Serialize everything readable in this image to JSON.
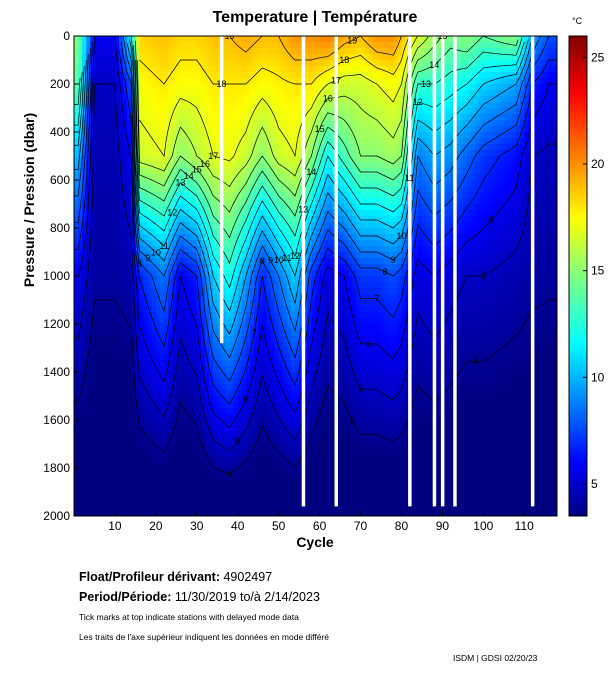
{
  "chart_data": {
    "type": "heatmap",
    "title": "Temperature | Température",
    "xlabel": "Cycle",
    "ylabel": "Pressure / Pression (dbar)",
    "xlim": [
      0,
      118
    ],
    "ylim": [
      2000,
      0
    ],
    "x_ticks": [
      10,
      20,
      30,
      40,
      50,
      60,
      70,
      80,
      90,
      100,
      110
    ],
    "y_ticks": [
      0,
      200,
      400,
      600,
      800,
      1000,
      1200,
      1400,
      1600,
      1800,
      2000
    ],
    "colorbar": {
      "unit": "°C",
      "range": [
        3.5,
        26
      ],
      "ticks": [
        5,
        10,
        15,
        20,
        25
      ],
      "colormap": "jet"
    },
    "contour_labels": [
      "17",
      "18",
      "19",
      "16",
      "15",
      "14",
      "13",
      "12",
      "11",
      "10",
      "9",
      "8",
      "7",
      "6",
      "5",
      "4"
    ],
    "gap_cycles": [
      36,
      56,
      64,
      82,
      88,
      90,
      93,
      112
    ],
    "profiles": [
      {
        "cycle": 1,
        "t_surface": 15.0,
        "t_200": 14.0,
        "t_500": 10.5,
        "t_1000": 6.0
      },
      {
        "cycle": 5,
        "t_surface": 6.0,
        "t_200": 5.0,
        "t_500": 4.6,
        "t_1000": 4.2
      },
      {
        "cycle": 10,
        "t_surface": 6.0,
        "t_200": 5.0,
        "t_500": 4.6,
        "t_1000": 4.2
      },
      {
        "cycle": 14,
        "t_surface": 12.0,
        "t_200": 8.0,
        "t_500": 6.0,
        "t_1000": 4.5
      },
      {
        "cycle": 16,
        "t_surface": 18.5,
        "t_200": 17.5,
        "t_500": 16.5,
        "t_1000": 7.0
      },
      {
        "cycle": 22,
        "t_surface": 19.0,
        "t_200": 18.0,
        "t_500": 17.0,
        "t_1000": 9.0
      },
      {
        "cycle": 26,
        "t_surface": 18.5,
        "t_200": 17.5,
        "t_500": 15.0,
        "t_1000": 6.0
      },
      {
        "cycle": 30,
        "t_surface": 18.5,
        "t_200": 17.5,
        "t_500": 16.0,
        "t_1000": 7.0
      },
      {
        "cycle": 34,
        "t_surface": 19.0,
        "t_200": 18.0,
        "t_500": 17.0,
        "t_1000": 11.0
      },
      {
        "cycle": 38,
        "t_surface": 19.0,
        "t_200": 18.0,
        "t_500": 17.2,
        "t_1000": 12.5
      },
      {
        "cycle": 42,
        "t_surface": 19.5,
        "t_200": 18.0,
        "t_500": 16.5,
        "t_1000": 10.0
      },
      {
        "cycle": 46,
        "t_surface": 19.0,
        "t_200": 17.5,
        "t_500": 15.0,
        "t_1000": 7.0
      },
      {
        "cycle": 50,
        "t_surface": 19.0,
        "t_200": 17.8,
        "t_500": 16.5,
        "t_1000": 9.0
      },
      {
        "cycle": 54,
        "t_surface": 20.0,
        "t_200": 18.0,
        "t_500": 17.0,
        "t_1000": 11.0
      },
      {
        "cycle": 58,
        "t_surface": 20.0,
        "t_200": 18.0,
        "t_500": 15.0,
        "t_1000": 7.5
      },
      {
        "cycle": 62,
        "t_surface": 20.5,
        "t_200": 17.0,
        "t_500": 12.0,
        "t_1000": 5.5
      },
      {
        "cycle": 66,
        "t_surface": 19.5,
        "t_200": 16.5,
        "t_500": 13.5,
        "t_1000": 6.0
      },
      {
        "cycle": 70,
        "t_surface": 19.0,
        "t_200": 16.5,
        "t_500": 15.0,
        "t_1000": 7.5
      },
      {
        "cycle": 74,
        "t_surface": 20.0,
        "t_200": 17.0,
        "t_500": 15.0,
        "t_1000": 7.5
      },
      {
        "cycle": 78,
        "t_surface": 20.0,
        "t_200": 17.5,
        "t_500": 15.5,
        "t_1000": 8.0
      },
      {
        "cycle": 80,
        "t_surface": 19.0,
        "t_200": 17.0,
        "t_500": 15.0,
        "t_1000": 7.5
      },
      {
        "cycle": 84,
        "t_surface": 17.0,
        "t_200": 13.0,
        "t_500": 9.0,
        "t_1000": 5.5
      },
      {
        "cycle": 88,
        "t_surface": 15.5,
        "t_200": 13.0,
        "t_500": 10.0,
        "t_1000": 6.0
      },
      {
        "cycle": 92,
        "t_surface": 14.5,
        "t_200": 12.5,
        "t_500": 9.5,
        "t_1000": 5.5
      },
      {
        "cycle": 96,
        "t_surface": 15.0,
        "t_200": 12.0,
        "t_500": 8.5,
        "t_1000": 5.0
      },
      {
        "cycle": 100,
        "t_surface": 14.0,
        "t_200": 11.0,
        "t_500": 7.5,
        "t_1000": 5.0
      },
      {
        "cycle": 104,
        "t_surface": 14.5,
        "t_200": 10.5,
        "t_500": 7.0,
        "t_1000": 4.8
      },
      {
        "cycle": 108,
        "t_surface": 15.0,
        "t_200": 10.0,
        "t_500": 6.5,
        "t_1000": 4.6
      },
      {
        "cycle": 112,
        "t_surface": 10.0,
        "t_200": 7.0,
        "t_500": 5.0,
        "t_1000": 4.3
      },
      {
        "cycle": 116,
        "t_surface": 8.0,
        "t_200": 6.0,
        "t_500": 4.8,
        "t_1000": 4.2
      },
      {
        "cycle": 118,
        "t_surface": 8.0,
        "t_200": 6.0,
        "t_500": 4.8,
        "t_1000": 4.2
      }
    ]
  },
  "info": {
    "float_label": "Float/Profileur dérivant:",
    "float_id": "4902497",
    "period_label": "Period/Période:",
    "period_value": "11/30/2019  to/à  2/14/2023",
    "note_en": "Tick marks at top indicate stations with delayed mode data",
    "note_fr": "Les traits de l'axe supérieur indiquent les données en mode différé",
    "credit": "ISDM | GDSI  02/20/23"
  }
}
